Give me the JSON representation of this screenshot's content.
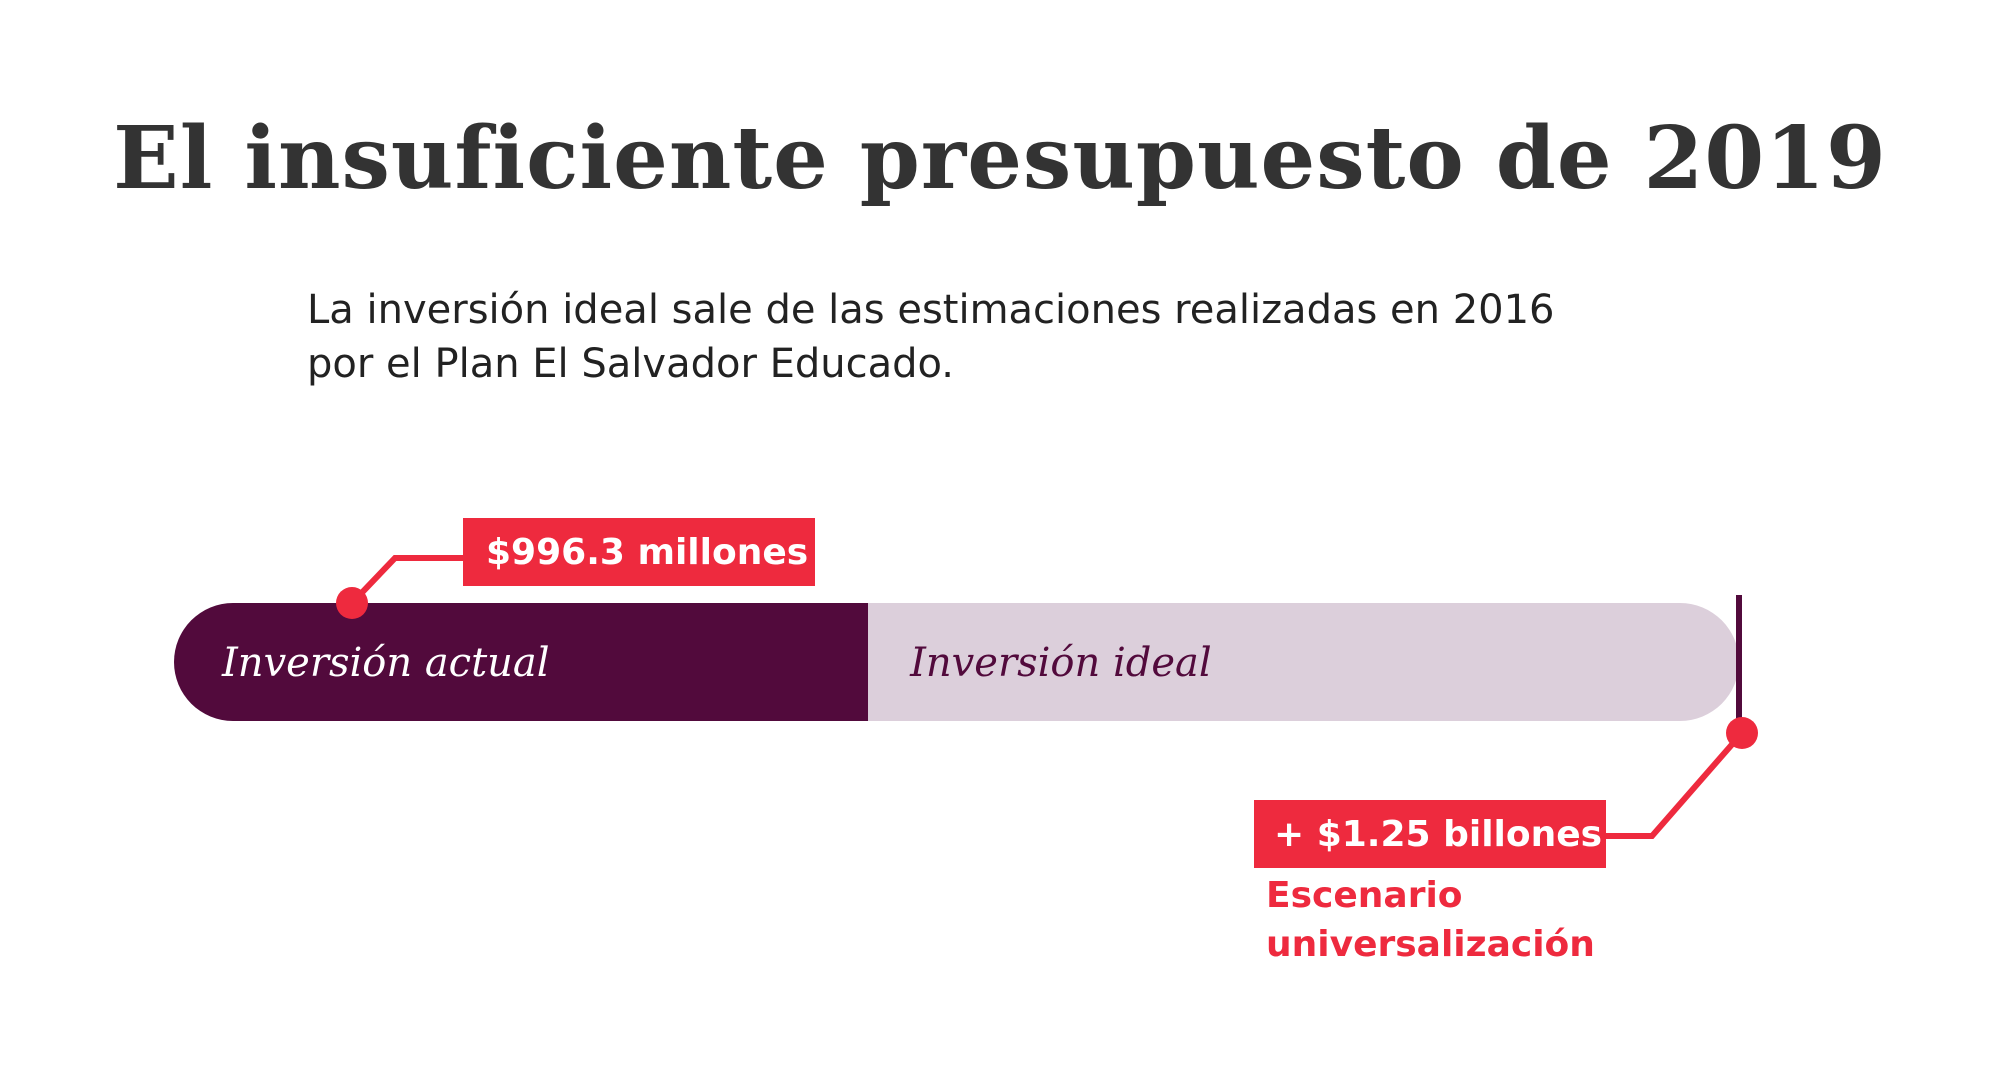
{
  "title": "El insuficiente presupuesto de 2019",
  "subtitle_lines": [
    "La inversión ideal sale de las estimaciones realizadas en 2016",
    "por el Plan El Salvador Educado."
  ],
  "colors": {
    "actual": "#520a3c",
    "ideal": "#dccfdb",
    "accent": "#ee2a3e",
    "ideal_label": "#520a3c",
    "end_marker": "#520a3c"
  },
  "chart_data": {
    "type": "bar",
    "orientation": "horizontal",
    "stacked": true,
    "unit": "millones de dólares",
    "segments": [
      {
        "label": "Inversión actual",
        "value": 996.3,
        "display_value": "$996.3 millones"
      },
      {
        "label": "Inversión ideal",
        "value": 1250,
        "display_value": "+ $1.25 billones"
      }
    ],
    "annotations": [
      {
        "text": "$996.3 millones",
        "attached_to": "Inversión actual",
        "position": "top-left"
      },
      {
        "text": "+ $1.25 billones",
        "attached_to": "Inversión ideal",
        "position": "bottom-right"
      }
    ],
    "note_lines": [
      "Escenario",
      "universalización"
    ]
  }
}
